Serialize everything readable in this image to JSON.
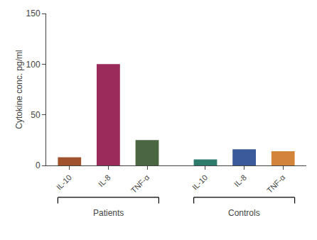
{
  "chart_data": {
    "type": "bar",
    "ylabel": "Cytokine conc. pg/ml",
    "ylim": [
      0,
      150
    ],
    "yticks": [
      0,
      50,
      100,
      150
    ],
    "grid": false,
    "groups": [
      {
        "name": "Patients",
        "categories": [
          "IL-10",
          "IL-8",
          "TNF-α"
        ],
        "values": [
          8,
          100,
          25
        ],
        "colors": [
          "#A0522D",
          "#9B2B5B",
          "#4A6741"
        ]
      },
      {
        "name": "Controls",
        "categories": [
          "IL-10",
          "IL-8",
          "TNF-α"
        ],
        "values": [
          6,
          16,
          14
        ],
        "colors": [
          "#2E7B6B",
          "#3A5A9B",
          "#D4833A"
        ]
      }
    ]
  }
}
